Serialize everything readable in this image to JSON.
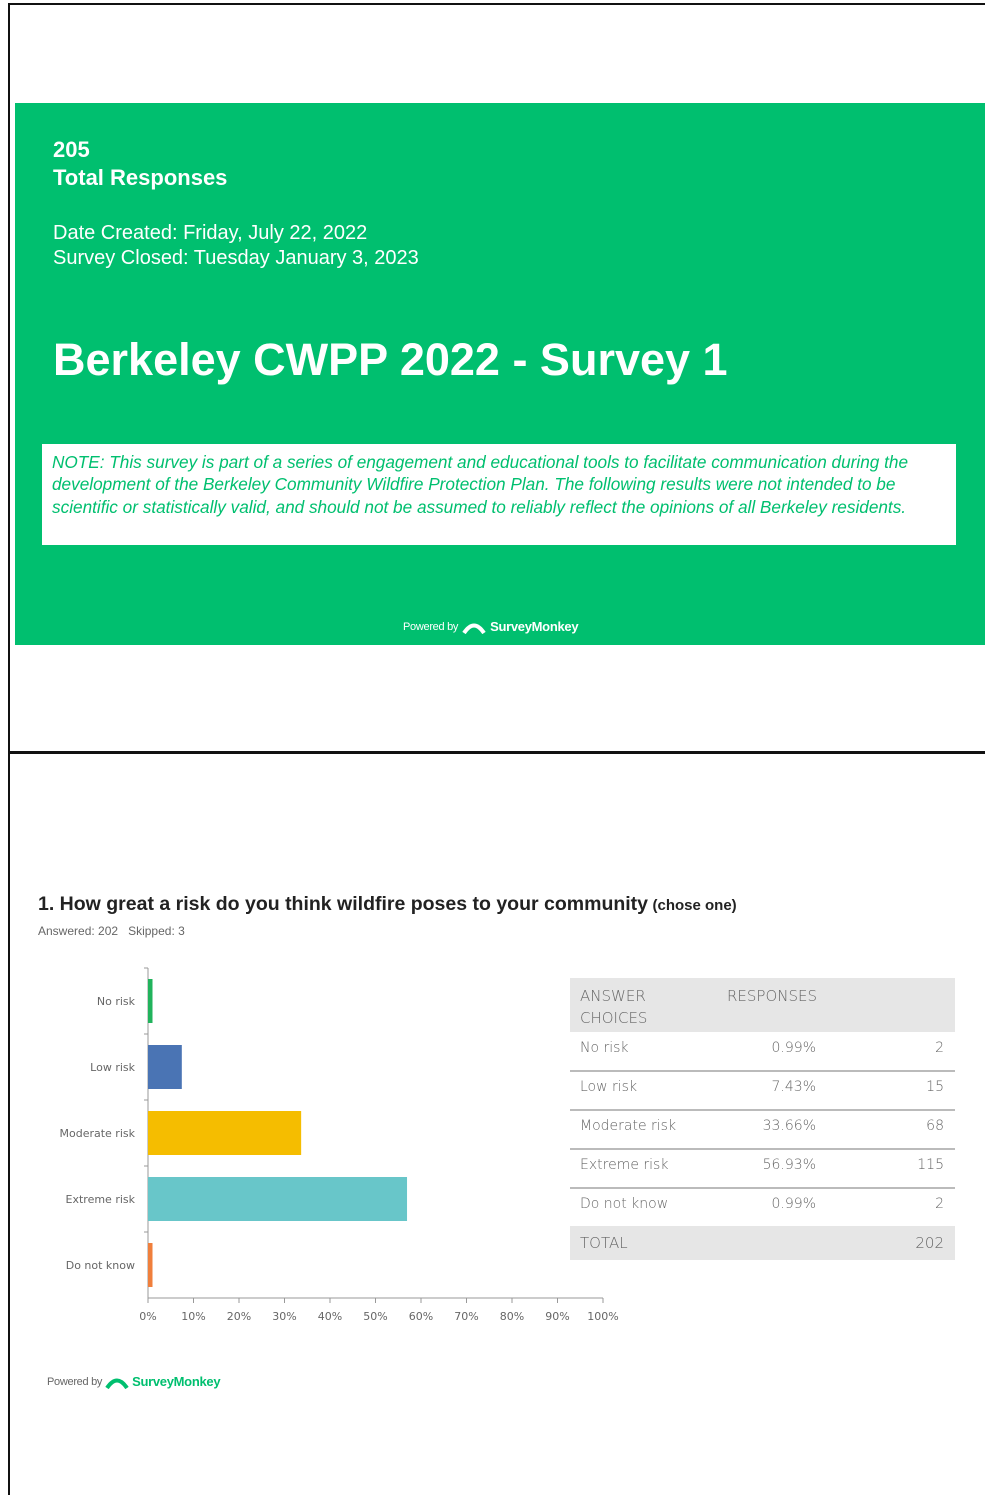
{
  "cover": {
    "response_count": 205,
    "response_label": "Total Responses",
    "date_created": "Date Created: Friday, July 22, 2022",
    "survey_closed": "Survey Closed: Tuesday January 3, 2023",
    "title": "Berkeley CWPP 2022 - Survey 1",
    "note": "NOTE: This survey is part of a series of engagement and educational tools to facilitate communication during the development of the Berkeley Community Wildfire Protection Plan.  The following results were not intended to be scientific or statistically valid, and should not be assumed to reliably reflect the opinions of all Berkeley residents."
  },
  "footer": {
    "powered_by": "Powered by",
    "brand": "SurveyMonkey"
  },
  "question": {
    "title": "1. How great a risk do you think wildfire poses to your community",
    "hint": "(chose one)",
    "answered": "Answered: 202",
    "skipped": "Skipped: 3"
  },
  "chart_data": {
    "type": "barh",
    "categories": [
      "No risk",
      "Low risk",
      "Moderate risk",
      "Extreme risk",
      "Do not know"
    ],
    "values": [
      0.99,
      7.43,
      33.66,
      56.93,
      0.99
    ],
    "colors": [
      "#21b35c",
      "#4a74b4",
      "#f5bd00",
      "#68c6c9",
      "#f07f3c"
    ],
    "xlim": [
      0,
      100
    ],
    "xticks": [
      {
        "value": 0,
        "label": "0%"
      },
      {
        "value": 10,
        "label": "10%"
      },
      {
        "value": 20,
        "label": "20%"
      },
      {
        "value": 30,
        "label": "30%"
      },
      {
        "value": 40,
        "label": "40%"
      },
      {
        "value": 50,
        "label": "50%"
      },
      {
        "value": 60,
        "label": "60%"
      },
      {
        "value": 70,
        "label": "70%"
      },
      {
        "value": 80,
        "label": "80%"
      },
      {
        "value": 90,
        "label": "90%"
      },
      {
        "value": 100,
        "label": "100%"
      }
    ]
  },
  "table": {
    "headers": [
      "ANSWER CHOICES",
      "RESPONSES"
    ],
    "rows": [
      [
        "No risk",
        "0.99%",
        2
      ],
      [
        "Low risk",
        "7.43%",
        15
      ],
      [
        "Moderate risk",
        "33.66%",
        68
      ],
      [
        "Extreme risk",
        "56.93%",
        115
      ],
      [
        "Do not know",
        "0.99%",
        2
      ]
    ],
    "total_label": "TOTAL",
    "total": 202
  }
}
